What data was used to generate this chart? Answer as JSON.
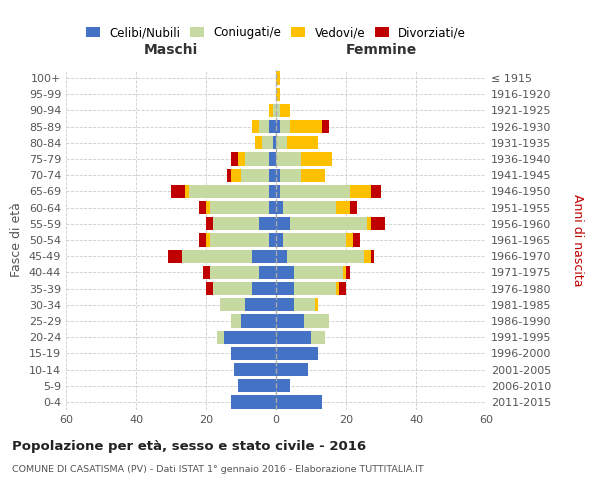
{
  "age_groups": [
    "100+",
    "95-99",
    "90-94",
    "85-89",
    "80-84",
    "75-79",
    "70-74",
    "65-69",
    "60-64",
    "55-59",
    "50-54",
    "45-49",
    "40-44",
    "35-39",
    "30-34",
    "25-29",
    "20-24",
    "15-19",
    "10-14",
    "5-9",
    "0-4"
  ],
  "birth_years": [
    "≤ 1915",
    "1916-1920",
    "1921-1925",
    "1926-1930",
    "1931-1935",
    "1936-1940",
    "1941-1945",
    "1946-1950",
    "1951-1955",
    "1956-1960",
    "1961-1965",
    "1966-1970",
    "1971-1975",
    "1976-1980",
    "1981-1985",
    "1986-1990",
    "1991-1995",
    "1996-2000",
    "2001-2005",
    "2006-2010",
    "2011-2015"
  ],
  "colors": {
    "celibi": "#4472c4",
    "coniugati": "#c5d9a0",
    "vedovi": "#ffc000",
    "divorziati": "#c00000"
  },
  "males": {
    "celibi": [
      0,
      0,
      0,
      2,
      1,
      2,
      2,
      2,
      2,
      5,
      2,
      7,
      5,
      7,
      9,
      10,
      15,
      13,
      12,
      11,
      13
    ],
    "coniugati": [
      0,
      0,
      1,
      3,
      3,
      7,
      8,
      23,
      17,
      13,
      17,
      20,
      14,
      11,
      7,
      3,
      2,
      0,
      0,
      0,
      0
    ],
    "vedovi": [
      0,
      0,
      1,
      2,
      2,
      2,
      3,
      1,
      1,
      0,
      1,
      0,
      0,
      0,
      0,
      0,
      0,
      0,
      0,
      0,
      0
    ],
    "divorziati": [
      0,
      0,
      0,
      0,
      0,
      2,
      1,
      4,
      2,
      2,
      2,
      4,
      2,
      2,
      0,
      0,
      0,
      0,
      0,
      0,
      0
    ]
  },
  "females": {
    "nubili": [
      0,
      0,
      0,
      1,
      0,
      0,
      1,
      1,
      2,
      4,
      2,
      3,
      5,
      5,
      5,
      8,
      10,
      12,
      9,
      4,
      13
    ],
    "coniugate": [
      0,
      0,
      1,
      3,
      3,
      7,
      6,
      20,
      15,
      22,
      18,
      22,
      14,
      12,
      6,
      7,
      4,
      0,
      0,
      0,
      0
    ],
    "vedove": [
      1,
      1,
      3,
      9,
      9,
      9,
      7,
      6,
      4,
      1,
      2,
      2,
      1,
      1,
      1,
      0,
      0,
      0,
      0,
      0,
      0
    ],
    "divorziate": [
      0,
      0,
      0,
      2,
      0,
      0,
      0,
      3,
      2,
      4,
      2,
      1,
      1,
      2,
      0,
      0,
      0,
      0,
      0,
      0,
      0
    ]
  },
  "xlim": 60,
  "xtick_step": 20,
  "title": "Popolazione per età, sesso e stato civile - 2016",
  "subtitle": "COMUNE DI CASATISMA (PV) - Dati ISTAT 1° gennaio 2016 - Elaborazione TUTTITALIA.IT",
  "ylabel_left": "Fasce di età",
  "ylabel_right": "Anni di nascita",
  "label_maschi": "Maschi",
  "label_femmine": "Femmine",
  "legend_labels": [
    "Celibi/Nubili",
    "Coniugati/e",
    "Vedovi/e",
    "Divorziati/e"
  ],
  "bg_color": "#ffffff",
  "grid_color": "#cccccc",
  "text_color": "#555555",
  "title_color": "#222222",
  "right_label_color": "#c00000"
}
